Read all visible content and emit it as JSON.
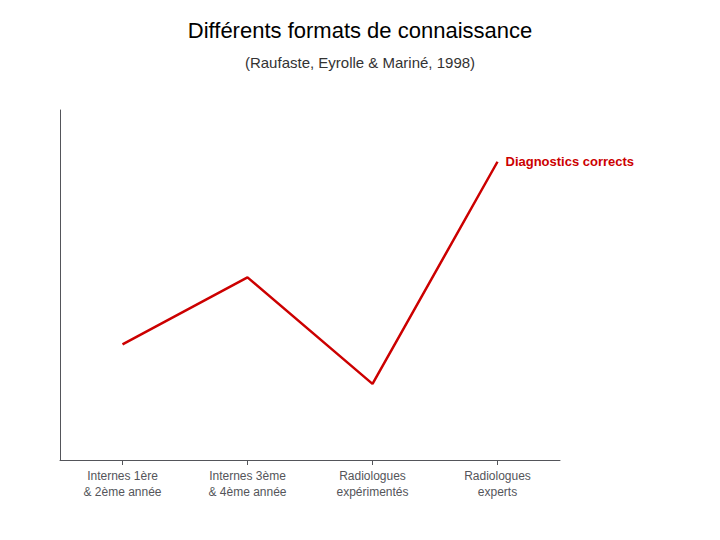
{
  "chart_data": {
    "type": "line",
    "title": "Différents formats de connaissance",
    "subtitle": "(Raufaste, Eyrolle & Mariné, 1998)",
    "categories": [
      "Internes 1ère\n& 2ème année",
      "Internes 3ème\n& 4ème année",
      "Radiologues\nexpérimentés",
      "Radiologues\nexperts"
    ],
    "values": [
      0.38,
      0.6,
      0.25,
      0.98
    ],
    "color": "#cc0000",
    "annotation": "Diagnostics corrects",
    "ylim": [
      0,
      1.15
    ],
    "tick_labels": "x",
    "grid": false
  }
}
